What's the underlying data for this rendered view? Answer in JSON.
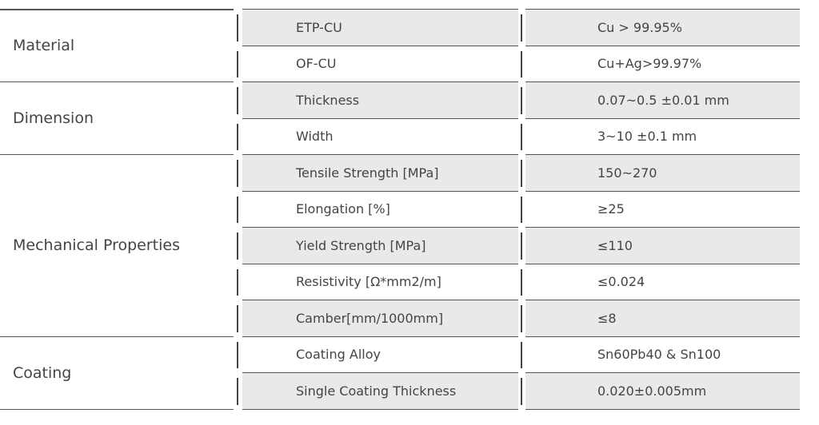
{
  "groups": [
    {
      "label": "Material",
      "rows": [
        {
          "property": "ETP-CU",
          "value": "Cu > 99.95%"
        },
        {
          "property": "OF-CU",
          "value": "Cu+Ag>99.97%"
        }
      ]
    },
    {
      "label": "Dimension",
      "rows": [
        {
          "property": "Thickness",
          "value": "0.07~0.5 ±0.01 mm"
        },
        {
          "property": "Width",
          "value": "3~10 ±0.1 mm"
        }
      ]
    },
    {
      "label": "Mechanical Properties",
      "rows": [
        {
          "property": "Tensile Strength [MPa]",
          "value": "150~270"
        },
        {
          "property": "Elongation [%]",
          "value": "≥25"
        },
        {
          "property": "Yield Strength [MPa]",
          "value": "≤110"
        },
        {
          "property": "Resistivity [Ω*mm2/m]",
          "value": "≤0.024"
        },
        {
          "property": "Camber[mm/1000mm]",
          "value": "≤8"
        }
      ]
    },
    {
      "label": "Coating",
      "rows": [
        {
          "property": "Coating Alloy",
          "value": "Sn60Pb40 & Sn100"
        },
        {
          "property": "Single Coating Thickness",
          "value": "0.020±0.005mm"
        }
      ]
    }
  ]
}
